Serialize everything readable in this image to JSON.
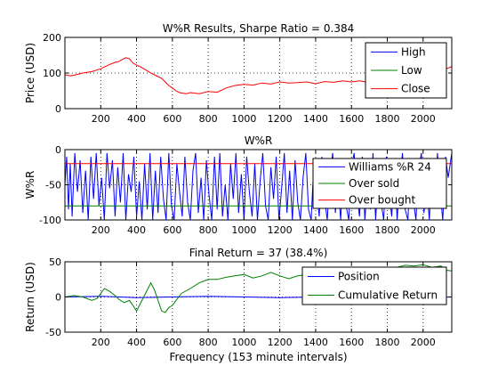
{
  "colors": {
    "blue": "#0000ff",
    "green": "#008000",
    "red": "#ff0000",
    "axis": "#000000"
  },
  "chart_data": [
    {
      "type": "line",
      "title": "W%R Results, Sharpe Ratio = 0.384",
      "xlabel": "",
      "ylabel": "Price (USD)",
      "xlim": [
        0,
        2160
      ],
      "ylim": [
        0,
        200
      ],
      "xticks": [
        200,
        400,
        600,
        800,
        1000,
        1200,
        1400,
        1600,
        1800,
        2000
      ],
      "yticks": [
        0,
        100,
        200
      ],
      "grid": true,
      "legend": "top-right",
      "series": [
        {
          "name": "High",
          "color": "#0000ff",
          "x": [],
          "y": []
        },
        {
          "name": "Low",
          "color": "#008000",
          "x": [],
          "y": []
        },
        {
          "name": "Close",
          "color": "#ff0000",
          "x": [
            0,
            30,
            60,
            100,
            150,
            200,
            250,
            280,
            300,
            320,
            340,
            360,
            380,
            400,
            420,
            440,
            460,
            480,
            500,
            520,
            540,
            560,
            580,
            600,
            620,
            640,
            660,
            680,
            700,
            750,
            800,
            850,
            900,
            950,
            1000,
            1050,
            1100,
            1150,
            1200,
            1250,
            1300,
            1350,
            1400,
            1450,
            1500,
            1550,
            1600,
            1650,
            1700,
            1750,
            1800,
            1850,
            1900,
            1950,
            2000,
            2050,
            2100,
            2130,
            2160
          ],
          "y": [
            95,
            92,
            95,
            100,
            104,
            112,
            124,
            130,
            132,
            138,
            143,
            140,
            128,
            122,
            118,
            112,
            106,
            100,
            95,
            90,
            85,
            75,
            65,
            58,
            50,
            45,
            43,
            42,
            45,
            42,
            48,
            46,
            58,
            65,
            68,
            66,
            72,
            69,
            75,
            72,
            73,
            75,
            70,
            76,
            74,
            78,
            75,
            78,
            72,
            76,
            80,
            78,
            85,
            88,
            90,
            86,
            94,
            112,
            118
          ]
        }
      ]
    },
    {
      "type": "line",
      "title": "W%R",
      "xlabel": "",
      "ylabel": "W%R",
      "xlim": [
        0,
        2160
      ],
      "ylim": [
        -100,
        0
      ],
      "xticks": [
        200,
        400,
        600,
        800,
        1000,
        1200,
        1400,
        1600,
        1800,
        2000
      ],
      "yticks": [
        -100,
        -50,
        0
      ],
      "grid": true,
      "legend": "top-right",
      "series": [
        {
          "name": "Williams %R 24",
          "color": "#0000ff",
          "x": [
            0,
            10,
            20,
            30,
            40,
            55,
            70,
            85,
            100,
            115,
            130,
            145,
            160,
            175,
            190,
            205,
            220,
            235,
            250,
            265,
            280,
            295,
            310,
            325,
            340,
            355,
            370,
            385,
            400,
            415,
            430,
            445,
            460,
            475,
            490,
            505,
            520,
            535,
            550,
            565,
            580,
            595,
            610,
            625,
            640,
            655,
            670,
            685,
            700,
            715,
            730,
            745,
            760,
            775,
            790,
            805,
            820,
            835,
            850,
            865,
            880,
            895,
            910,
            925,
            940,
            955,
            970,
            985,
            1000,
            1015,
            1030,
            1045,
            1060,
            1075,
            1090,
            1105,
            1120,
            1135,
            1150,
            1165,
            1180,
            1195,
            1210,
            1225,
            1240,
            1255,
            1270,
            1285,
            1300,
            1315,
            1330,
            1345,
            1360,
            1375,
            1390,
            1405,
            1420,
            1435,
            1450,
            1465,
            1480,
            1495,
            1510,
            1525,
            1540,
            1555,
            1570,
            1585,
            1600,
            1615,
            1630,
            1645,
            1660,
            1675,
            1690,
            1705,
            1720,
            1735,
            1750,
            1765,
            1780,
            1795,
            1810,
            1825,
            1840,
            1855,
            1870,
            1885,
            1900,
            1915,
            1930,
            1945,
            1960,
            1975,
            1990,
            2005,
            2020,
            2035,
            2050,
            2065,
            2080,
            2095,
            2110,
            2125,
            2140,
            2160
          ],
          "y": [
            -50,
            -10,
            -85,
            -20,
            -95,
            -5,
            -60,
            -15,
            -90,
            -30,
            -100,
            -10,
            -70,
            -5,
            -80,
            -40,
            -100,
            -5,
            -55,
            -15,
            -95,
            -25,
            -75,
            -5,
            -100,
            -35,
            -60,
            -10,
            -95,
            -45,
            -100,
            -20,
            -85,
            -5,
            -100,
            -30,
            -90,
            -10,
            -70,
            -100,
            -5,
            -80,
            -100,
            -20,
            -60,
            -95,
            -10,
            -75,
            -100,
            -30,
            -5,
            -90,
            -40,
            -100,
            -15,
            -65,
            -100,
            -10,
            -85,
            -5,
            -95,
            -50,
            -100,
            -20,
            -70,
            -5,
            -90,
            -35,
            -100,
            -10,
            -60,
            -95,
            -20,
            -100,
            -45,
            -5,
            -80,
            -100,
            -25,
            -70,
            -10,
            -100,
            -55,
            -5,
            -90,
            -30,
            -100,
            -15,
            -75,
            -100,
            -40,
            -5,
            -85,
            -100,
            -20,
            -60,
            -95,
            -10,
            -70,
            -100,
            -35,
            -5,
            -90,
            -50,
            -100,
            -15,
            -80,
            -100,
            -25,
            -5,
            -65,
            -95,
            -10,
            -100,
            -45,
            -85,
            -5,
            -100,
            -30,
            -75,
            -100,
            -10,
            -60,
            -95,
            -20,
            -100,
            -40,
            -5,
            -85,
            -100,
            -15,
            -70,
            -100,
            -30,
            -5,
            -90,
            -50,
            -100,
            -20,
            -80,
            -5,
            -60,
            -100,
            -10,
            -40,
            -5
          ]
        },
        {
          "name": "Over sold",
          "color": "#008000",
          "x": [
            0,
            2160
          ],
          "y": [
            -80,
            -80
          ]
        },
        {
          "name": "Over bought",
          "color": "#ff0000",
          "x": [
            0,
            2160
          ],
          "y": [
            -20,
            -20
          ]
        }
      ]
    },
    {
      "type": "line",
      "title": "Final Return = 37 (38.4%)",
      "xlabel": "Frequency (153 minute intervals)",
      "ylabel": "Return (USD)",
      "xlim": [
        0,
        2160
      ],
      "ylim": [
        -50,
        50
      ],
      "xticks": [
        200,
        400,
        600,
        800,
        1000,
        1200,
        1400,
        1600,
        1800,
        2000
      ],
      "yticks": [
        -50,
        0,
        50
      ],
      "grid": true,
      "legend": "top-right",
      "series": [
        {
          "name": "Position",
          "color": "#0000ff",
          "x": [
            0,
            200,
            400,
            600,
            800,
            1000,
            1200,
            1400,
            1600,
            1800,
            2000,
            2160
          ],
          "y": [
            0,
            1,
            -1,
            0,
            1,
            0,
            -1,
            0,
            1,
            0,
            -1,
            0
          ]
        },
        {
          "name": "Cumulative Return",
          "color": "#008000",
          "x": [
            0,
            50,
            100,
            150,
            180,
            200,
            220,
            250,
            280,
            300,
            330,
            360,
            380,
            400,
            420,
            440,
            460,
            480,
            500,
            520,
            540,
            560,
            580,
            600,
            620,
            650,
            700,
            750,
            800,
            850,
            900,
            950,
            1000,
            1050,
            1100,
            1150,
            1200,
            1250,
            1300,
            1350,
            1400,
            1450,
            1500,
            1550,
            1600,
            1650,
            1700,
            1750,
            1800,
            1850,
            1900,
            1950,
            2000,
            2050,
            2100,
            2130,
            2160
          ],
          "y": [
            0,
            2,
            0,
            -5,
            -2,
            5,
            12,
            8,
            2,
            -3,
            -8,
            -5,
            -12,
            -20,
            -10,
            0,
            10,
            20,
            10,
            -5,
            -20,
            -22,
            -15,
            -12,
            -5,
            5,
            12,
            20,
            25,
            25,
            28,
            30,
            32,
            27,
            30,
            35,
            30,
            26,
            30,
            32,
            28,
            26,
            30,
            33,
            30,
            35,
            37,
            40,
            38,
            42,
            45,
            44,
            46,
            42,
            44,
            38,
            37
          ]
        }
      ]
    }
  ]
}
